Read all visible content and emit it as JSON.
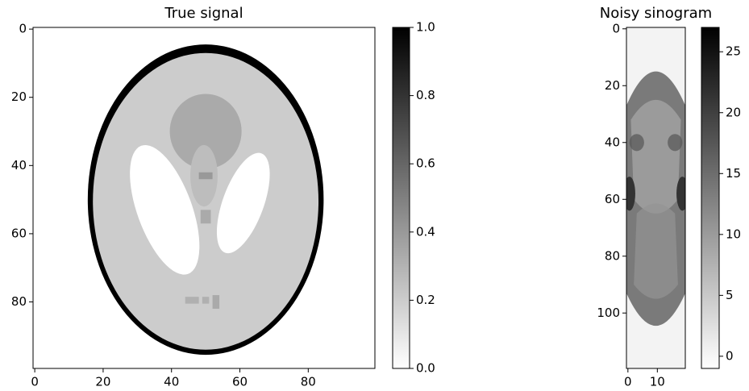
{
  "chart_data": [
    {
      "type": "image",
      "title": "True signal",
      "xlim": [
        -0.5,
        99.5
      ],
      "ylim": [
        99.5,
        -0.5
      ],
      "xticks": [
        0,
        20,
        40,
        60,
        80
      ],
      "yticks": [
        0,
        20,
        40,
        60,
        80
      ],
      "colormap": "gray_r",
      "colorbar": {
        "clim": [
          0,
          1
        ],
        "ticks": [
          {
            "value": 0,
            "label": "0.0"
          },
          0.2,
          0.4,
          0.6,
          0.8,
          {
            "value": 1,
            "label": "1.0"
          }
        ]
      }
    },
    {
      "type": "image",
      "title": "Noisy sinogram",
      "xlim": [
        -0.5,
        19.5
      ],
      "ylim": [
        119.5,
        -0.5
      ],
      "xticks": [
        0,
        10
      ],
      "yticks": [
        0,
        20,
        40,
        60,
        80,
        100
      ],
      "colormap": "gray_r",
      "colorbar": {
        "clim": [
          -1,
          27
        ],
        "ticks": [
          0,
          5,
          10,
          15,
          20,
          25
        ]
      }
    }
  ]
}
